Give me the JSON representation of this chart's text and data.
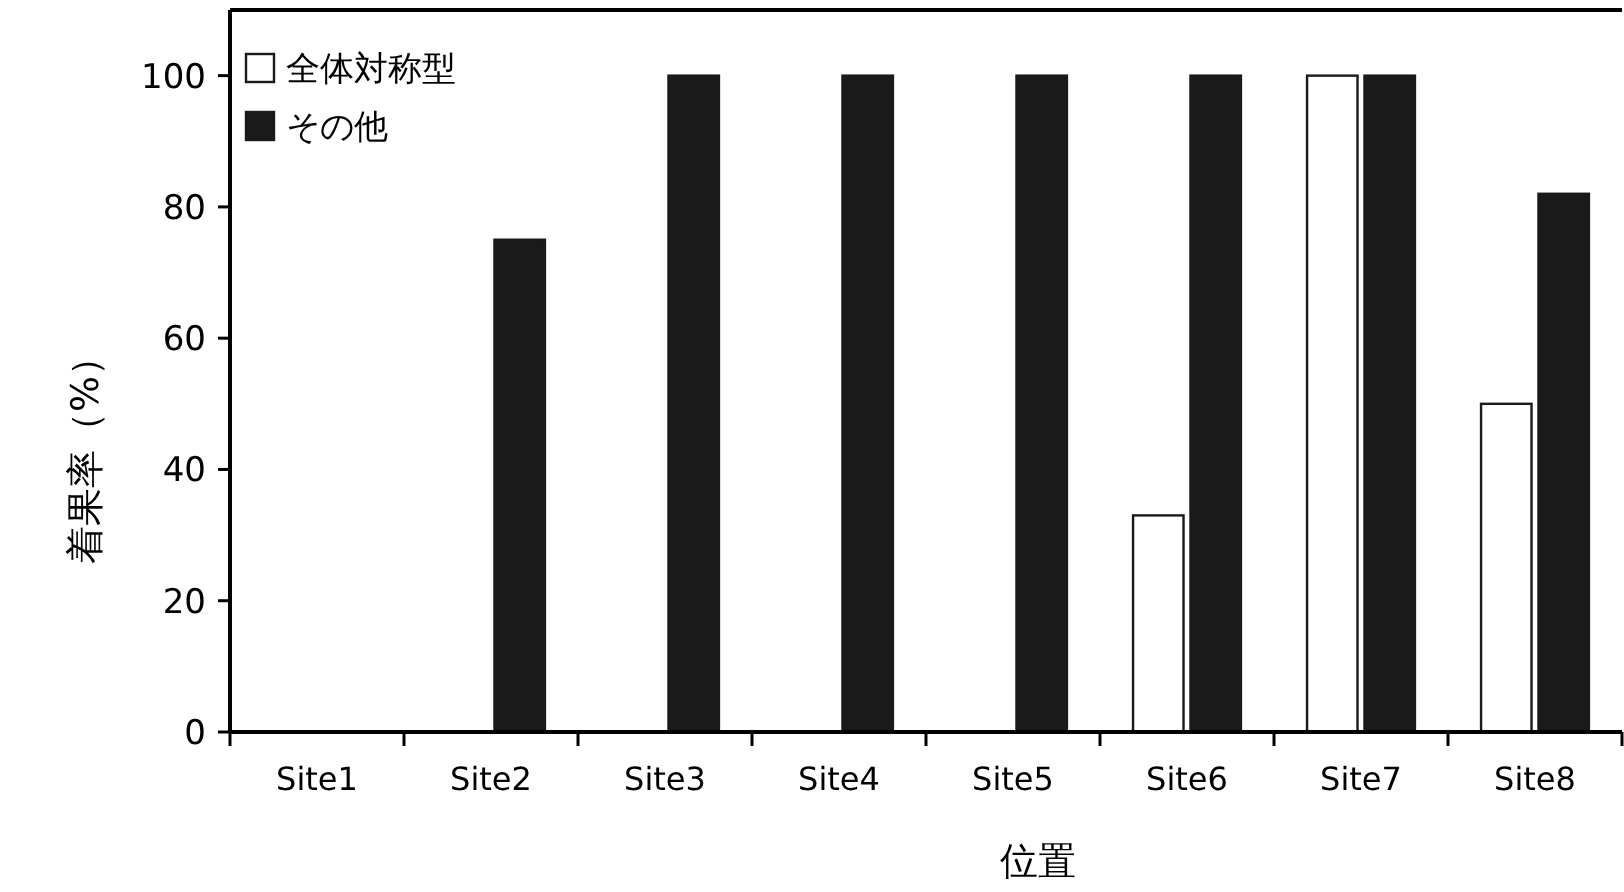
{
  "chart_data": {
    "type": "bar",
    "xlabel": "位置",
    "ylabel": "着果率（%）",
    "categories": [
      "Site1",
      "Site2",
      "Site3",
      "Site4",
      "Site5",
      "Site6",
      "Site7",
      "Site8"
    ],
    "series": [
      {
        "name": "全体対称型",
        "color": "#ffffff",
        "values": [
          0,
          0,
          0,
          0,
          0,
          33,
          100,
          50
        ]
      },
      {
        "name": "その他",
        "color": "#1a1a1a",
        "values": [
          0,
          75,
          100,
          100,
          100,
          100,
          100,
          82
        ]
      }
    ],
    "ylim": [
      0,
      110
    ],
    "yticks": [
      0,
      20,
      40,
      60,
      80,
      100
    ],
    "legend": "top left",
    "grid": false
  }
}
